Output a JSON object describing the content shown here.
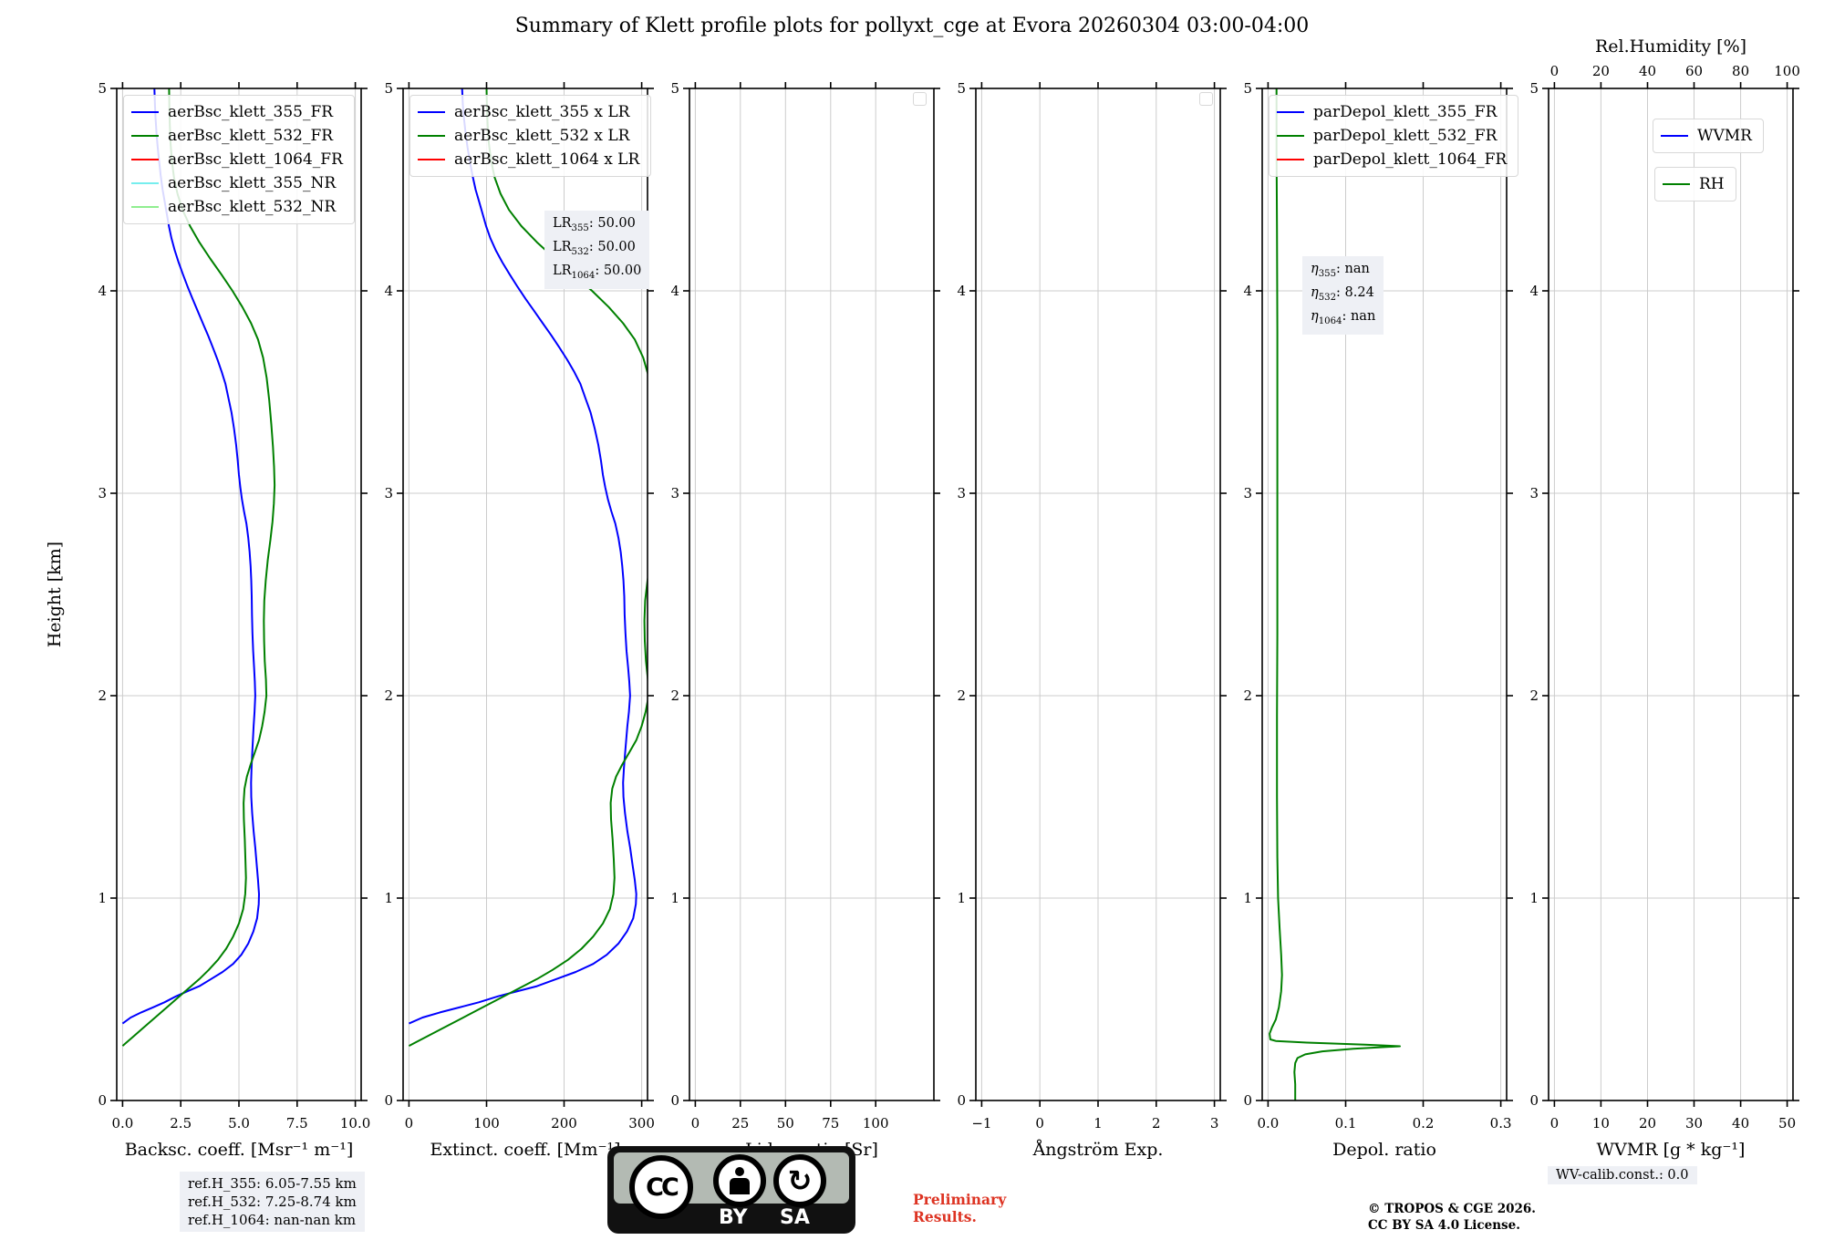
{
  "header": {
    "title": "Summary of Klett profile plots for pollyxt_cge at Evora 20260304 03:00-04:00"
  },
  "footer": {
    "ref_heights": [
      "ref.H_355: 6.05-7.55 km",
      "ref.H_532: 7.25-8.74 km",
      "ref.H_1064: nan-nan km"
    ],
    "license_badge": {
      "cc": "CC",
      "by": "BY",
      "sa": "SA",
      "sa_arrow_glyph": "↻"
    },
    "preliminary_lines": [
      "Preliminary",
      "Results."
    ],
    "copyright_lines": [
      "© TROPOS & CGE 2026.",
      "CC BY SA 4.0 License."
    ],
    "wv_calib": "WV-calib.const.: 0.0",
    "colors": {
      "preliminary": "#dd3322"
    }
  },
  "chart_data": [
    {
      "type": "line",
      "id": "backscatter",
      "xlabel": "Backsc. coeff. [Msr⁻¹ m⁻¹]",
      "ylabel": "Height [km]",
      "xlim": [
        0,
        10
      ],
      "xtick_vals": [
        0,
        2.5,
        5,
        7.5,
        10
      ],
      "xticks": [
        "0.0",
        "2.5",
        "5.0",
        "7.5",
        "10.0"
      ],
      "ylim": [
        0,
        5
      ],
      "ytick_vals": [
        0,
        1,
        2,
        3,
        4,
        5
      ],
      "yticks": [
        "0",
        "1",
        "2",
        "3",
        "4",
        "5"
      ],
      "grid": true,
      "legends": [
        {
          "entries": [
            {
              "label": "aerBsc_klett_355_FR",
              "color": "#0000ff"
            },
            {
              "label": "aerBsc_klett_532_FR",
              "color": "#008000"
            },
            {
              "label": "aerBsc_klett_1064_FR",
              "color": "#ff0000"
            },
            {
              "label": "aerBsc_klett_355_NR",
              "color": "#76eeee"
            },
            {
              "label": "aerBsc_klett_532_NR",
              "color": "#90ee90"
            }
          ]
        }
      ],
      "series": [
        {
          "name": "aerBsc_klett_355_FR",
          "color": "#0000ff",
          "points": [
            [
              0.0,
              0.38
            ],
            [
              0.35,
              0.41
            ],
            [
              0.8,
              0.435
            ],
            [
              1.3,
              0.46
            ],
            [
              1.8,
              0.485
            ],
            [
              2.3,
              0.515
            ],
            [
              2.8,
              0.54
            ],
            [
              3.3,
              0.565
            ],
            [
              3.8,
              0.6
            ],
            [
              4.3,
              0.635
            ],
            [
              4.75,
              0.675
            ],
            [
              5.1,
              0.72
            ],
            [
              5.4,
              0.775
            ],
            [
              5.62,
              0.835
            ],
            [
              5.78,
              0.9
            ],
            [
              5.85,
              0.97
            ],
            [
              5.86,
              1.02
            ],
            [
              5.82,
              1.09
            ],
            [
              5.76,
              1.17
            ],
            [
              5.7,
              1.25
            ],
            [
              5.63,
              1.33
            ],
            [
              5.57,
              1.42
            ],
            [
              5.53,
              1.5
            ],
            [
              5.52,
              1.57
            ],
            [
              5.54,
              1.64
            ],
            [
              5.57,
              1.71
            ],
            [
              5.6,
              1.78
            ],
            [
              5.63,
              1.85
            ],
            [
              5.67,
              1.92
            ],
            [
              5.7,
              2.0
            ],
            [
              5.68,
              2.07
            ],
            [
              5.65,
              2.14
            ],
            [
              5.61,
              2.22
            ],
            [
              5.58,
              2.31
            ],
            [
              5.56,
              2.4
            ],
            [
              5.55,
              2.49
            ],
            [
              5.53,
              2.57
            ],
            [
              5.5,
              2.64
            ],
            [
              5.46,
              2.71
            ],
            [
              5.4,
              2.78
            ],
            [
              5.32,
              2.85
            ],
            [
              5.22,
              2.91
            ],
            [
              5.13,
              2.97
            ],
            [
              5.06,
              3.03
            ],
            [
              5.0,
              3.09
            ],
            [
              4.95,
              3.16
            ],
            [
              4.88,
              3.24
            ],
            [
              4.79,
              3.32
            ],
            [
              4.68,
              3.4
            ],
            [
              4.55,
              3.47
            ],
            [
              4.42,
              3.54
            ],
            [
              4.26,
              3.6
            ],
            [
              4.08,
              3.66
            ],
            [
              3.88,
              3.72
            ],
            [
              3.67,
              3.78
            ],
            [
              3.45,
              3.84
            ],
            [
              3.23,
              3.9
            ],
            [
              3.01,
              3.96
            ],
            [
              2.8,
              4.02
            ],
            [
              2.6,
              4.08
            ],
            [
              2.41,
              4.14
            ],
            [
              2.24,
              4.2
            ],
            [
              2.1,
              4.26
            ],
            [
              1.99,
              4.32
            ],
            [
              1.9,
              4.38
            ],
            [
              1.81,
              4.44
            ],
            [
              1.72,
              4.5
            ],
            [
              1.64,
              4.57
            ],
            [
              1.57,
              4.64
            ],
            [
              1.51,
              4.71
            ],
            [
              1.46,
              4.78
            ],
            [
              1.42,
              4.85
            ],
            [
              1.39,
              4.92
            ],
            [
              1.37,
              5.0
            ]
          ]
        },
        {
          "name": "aerBsc_klett_532_FR",
          "color": "#008000",
          "points": [
            [
              0.0,
              0.27
            ],
            [
              0.45,
              0.315
            ],
            [
              0.95,
              0.365
            ],
            [
              1.45,
              0.415
            ],
            [
              1.95,
              0.465
            ],
            [
              2.4,
              0.51
            ],
            [
              2.85,
              0.555
            ],
            [
              3.3,
              0.6
            ],
            [
              3.7,
              0.645
            ],
            [
              4.1,
              0.695
            ],
            [
              4.45,
              0.75
            ],
            [
              4.75,
              0.81
            ],
            [
              5.0,
              0.875
            ],
            [
              5.18,
              0.945
            ],
            [
              5.27,
              1.02
            ],
            [
              5.3,
              1.1
            ],
            [
              5.28,
              1.19
            ],
            [
              5.25,
              1.29
            ],
            [
              5.21,
              1.39
            ],
            [
              5.2,
              1.47
            ],
            [
              5.24,
              1.54
            ],
            [
              5.34,
              1.6
            ],
            [
              5.5,
              1.66
            ],
            [
              5.68,
              1.72
            ],
            [
              5.86,
              1.78
            ],
            [
              6.0,
              1.85
            ],
            [
              6.1,
              1.92
            ],
            [
              6.18,
              2.0
            ],
            [
              6.16,
              2.08
            ],
            [
              6.11,
              2.17
            ],
            [
              6.08,
              2.27
            ],
            [
              6.07,
              2.37
            ],
            [
              6.09,
              2.47
            ],
            [
              6.15,
              2.57
            ],
            [
              6.24,
              2.67
            ],
            [
              6.35,
              2.77
            ],
            [
              6.44,
              2.86
            ],
            [
              6.5,
              2.95
            ],
            [
              6.53,
              3.04
            ],
            [
              6.51,
              3.13
            ],
            [
              6.46,
              3.23
            ],
            [
              6.39,
              3.34
            ],
            [
              6.3,
              3.46
            ],
            [
              6.19,
              3.57
            ],
            [
              6.04,
              3.67
            ],
            [
              5.82,
              3.76
            ],
            [
              5.52,
              3.84
            ],
            [
              5.15,
              3.92
            ],
            [
              4.72,
              4.0
            ],
            [
              4.25,
              4.08
            ],
            [
              3.76,
              4.16
            ],
            [
              3.3,
              4.24
            ],
            [
              2.9,
              4.32
            ],
            [
              2.58,
              4.4
            ],
            [
              2.36,
              4.48
            ],
            [
              2.21,
              4.56
            ],
            [
              2.12,
              4.64
            ],
            [
              2.06,
              4.73
            ],
            [
              2.03,
              4.82
            ],
            [
              2.01,
              4.91
            ],
            [
              2.0,
              5.0
            ]
          ]
        }
      ]
    },
    {
      "type": "line",
      "id": "extinction",
      "xlabel": "Extinct. coeff. [Mm⁻¹]",
      "xlim": [
        0,
        300
      ],
      "xtick_vals": [
        0,
        100,
        200,
        300
      ],
      "xticks": [
        "0",
        "100",
        "200",
        "300"
      ],
      "ylim": [
        0,
        5
      ],
      "ytick_vals": [
        0,
        1,
        2,
        3,
        4,
        5
      ],
      "yticks": [
        "0",
        "1",
        "2",
        "3",
        "4",
        "5"
      ],
      "grid": true,
      "legends": [
        {
          "entries": [
            {
              "label": "aerBsc_klett_355 x LR",
              "color": "#0000ff"
            },
            {
              "label": "aerBsc_klett_532 x LR",
              "color": "#008000"
            },
            {
              "label": "aerBsc_klett_1064 x LR",
              "color": "#ff0000"
            }
          ]
        }
      ],
      "annotation": {
        "lines": [
          {
            "base": "LR",
            "italic": false,
            "sub": "355",
            "value": "50.00"
          },
          {
            "base": "LR",
            "italic": false,
            "sub": "532",
            "value": "50.00"
          },
          {
            "base": "LR",
            "italic": false,
            "sub": "1064",
            "value": "50.00"
          }
        ]
      },
      "series": [
        {
          "name": "aerBsc_klett_355 x LR",
          "color": "#0000ff",
          "ref": [
            0,
            0
          ],
          "x_scale": 50
        },
        {
          "name": "aerBsc_klett_532 x LR",
          "color": "#008000",
          "ref": [
            0,
            1
          ],
          "x_scale": 50
        }
      ]
    },
    {
      "type": "line",
      "id": "lidar-ratio",
      "xlabel": "Lidar ratio [Sr]",
      "xlim": [
        0,
        129
      ],
      "xtick_vals": [
        0,
        25,
        50,
        75,
        100
      ],
      "xticks": [
        "0",
        "25",
        "50",
        "75",
        "100"
      ],
      "ylim": [
        0,
        5
      ],
      "ytick_vals": [
        0,
        1,
        2,
        3,
        4,
        5
      ],
      "yticks": [
        "0",
        "1",
        "2",
        "3",
        "4",
        "5"
      ],
      "grid": true,
      "legends": [
        {
          "entries": []
        }
      ],
      "series": []
    },
    {
      "type": "line",
      "id": "angstroem",
      "xlabel": "Ångström Exp.",
      "xlim": [
        -1,
        3
      ],
      "xtick_vals": [
        -1,
        0,
        1,
        2,
        3
      ],
      "xticks": [
        "−1",
        "0",
        "1",
        "2",
        "3"
      ],
      "ylim": [
        0,
        5
      ],
      "ytick_vals": [
        0,
        1,
        2,
        3,
        4,
        5
      ],
      "yticks": [
        "0",
        "1",
        "2",
        "3",
        "4",
        "5"
      ],
      "grid": true,
      "legends": [
        {
          "entries": []
        }
      ],
      "series": []
    },
    {
      "type": "line",
      "id": "depol-ratio",
      "xlabel": "Depol. ratio",
      "xlim": [
        0,
        0.3
      ],
      "xtick_vals": [
        0,
        0.1,
        0.2,
        0.3
      ],
      "xticks": [
        "0.0",
        "0.1",
        "0.2",
        "0.3"
      ],
      "ylim": [
        0,
        5
      ],
      "ytick_vals": [
        0,
        1,
        2,
        3,
        4,
        5
      ],
      "yticks": [
        "0",
        "1",
        "2",
        "3",
        "4",
        "5"
      ],
      "grid": true,
      "legends": [
        {
          "entries": [
            {
              "label": "parDepol_klett_355_FR",
              "color": "#0000ff"
            },
            {
              "label": "parDepol_klett_532_FR",
              "color": "#008000"
            },
            {
              "label": "parDepol_klett_1064_FR",
              "color": "#ff0000"
            }
          ]
        }
      ],
      "annotation": {
        "lines": [
          {
            "base": "η",
            "italic": true,
            "sub": "355",
            "value": "nan"
          },
          {
            "base": "η",
            "italic": true,
            "sub": "532",
            "value": "8.24"
          },
          {
            "base": "η",
            "italic": true,
            "sub": "1064",
            "value": "nan"
          }
        ]
      },
      "series": [
        {
          "name": "parDepol_klett_532_FR",
          "color": "#008000",
          "points": [
            [
              0.035,
              0.0
            ],
            [
              0.035,
              0.08
            ],
            [
              0.034,
              0.14
            ],
            [
              0.035,
              0.185
            ],
            [
              0.038,
              0.21
            ],
            [
              0.048,
              0.228
            ],
            [
              0.07,
              0.243
            ],
            [
              0.11,
              0.256
            ],
            [
              0.17,
              0.268
            ],
            [
              0.125,
              0.276
            ],
            [
              0.05,
              0.286
            ],
            [
              0.01,
              0.294
            ],
            [
              0.003,
              0.302
            ],
            [
              0.002,
              0.33
            ],
            [
              0.005,
              0.36
            ],
            [
              0.01,
              0.4
            ],
            [
              0.014,
              0.46
            ],
            [
              0.017,
              0.54
            ],
            [
              0.018,
              0.62
            ],
            [
              0.017,
              0.72
            ],
            [
              0.015,
              0.85
            ],
            [
              0.013,
              1.0
            ],
            [
              0.012,
              1.2
            ],
            [
              0.0115,
              1.5
            ],
            [
              0.0115,
              1.9
            ],
            [
              0.012,
              2.3
            ],
            [
              0.012,
              2.8
            ],
            [
              0.012,
              3.3
            ],
            [
              0.012,
              3.8
            ],
            [
              0.0115,
              4.3
            ],
            [
              0.011,
              4.7
            ],
            [
              0.011,
              5.0
            ]
          ]
        }
      ]
    },
    {
      "type": "line",
      "id": "wvmr",
      "xlabel": "WVMR [g * kg⁻¹]",
      "xlim": [
        0,
        50
      ],
      "xtick_vals": [
        0,
        10,
        20,
        30,
        40,
        50
      ],
      "xticks": [
        "0",
        "10",
        "20",
        "30",
        "40",
        "50"
      ],
      "ylim": [
        0,
        5
      ],
      "ytick_vals": [
        0,
        1,
        2,
        3,
        4,
        5
      ],
      "yticks": [
        "0",
        "1",
        "2",
        "3",
        "4",
        "5"
      ],
      "grid": true,
      "top_axis": {
        "label": "Rel.Humidity [%]",
        "lim": [
          0,
          100
        ],
        "tick_vals": [
          0,
          20,
          40,
          60,
          80,
          100
        ],
        "ticks": [
          "0",
          "20",
          "40",
          "60",
          "80",
          "100"
        ]
      },
      "legends": [
        {
          "entries": [
            {
              "label": "WVMR",
              "color": "#0000ff"
            }
          ]
        },
        {
          "entries": [
            {
              "label": "RH",
              "color": "#008000"
            }
          ]
        }
      ],
      "series": []
    }
  ]
}
